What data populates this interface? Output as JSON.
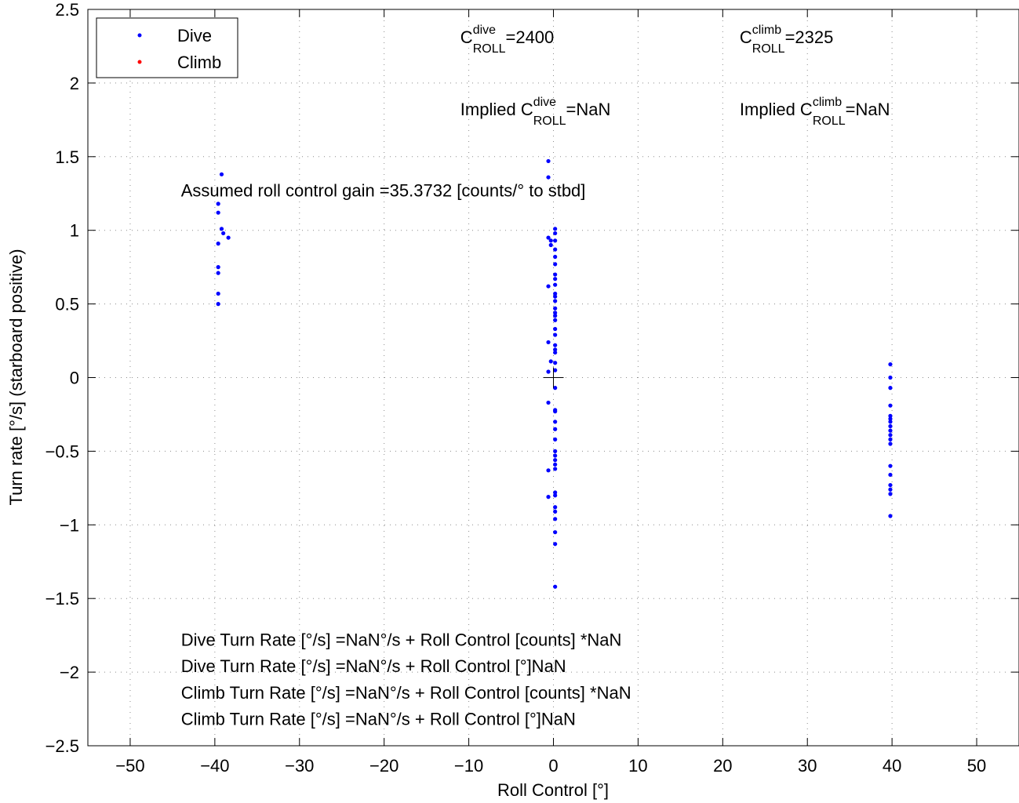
{
  "chart_data": {
    "type": "scatter",
    "xlabel": "Roll Control [°]",
    "ylabel": "Turn rate [°/s] (starboard positive)",
    "xlim": [
      -55,
      55
    ],
    "ylim": [
      -2.5,
      2.5
    ],
    "x_ticks": [
      -50,
      -40,
      -30,
      -20,
      -10,
      0,
      10,
      20,
      30,
      40,
      50
    ],
    "x_tick_labels": [
      "−50",
      "−40",
      "−30",
      "−20",
      "−10",
      "0",
      "10",
      "20",
      "30",
      "40",
      "50"
    ],
    "y_ticks": [
      2.5,
      2,
      1.5,
      1,
      0.5,
      0,
      -0.5,
      -1,
      -1.5,
      -2,
      -2.5
    ],
    "y_tick_labels": [
      "2.5",
      "2",
      "1.5",
      "1",
      "0.5",
      "0",
      "−0.5",
      "−1",
      "−1.5",
      "−2",
      "−2.5"
    ],
    "grid": true,
    "legend_position": "top-left",
    "legend": [
      {
        "label": "Dive",
        "color": "#0000ff"
      },
      {
        "label": "Climb",
        "color": "#ff0000"
      }
    ],
    "series": [
      {
        "name": "Dive",
        "color": "#0000ff",
        "points": [
          [
            -39.2,
            1.38
          ],
          [
            -39.6,
            1.18
          ],
          [
            -39.6,
            1.12
          ],
          [
            -39.2,
            1.01
          ],
          [
            -39.0,
            0.98
          ],
          [
            -38.4,
            0.95
          ],
          [
            -39.6,
            0.91
          ],
          [
            -39.6,
            0.75
          ],
          [
            -39.6,
            0.71
          ],
          [
            -39.6,
            0.57
          ],
          [
            -39.6,
            0.5
          ],
          [
            -0.6,
            1.47
          ],
          [
            -0.6,
            1.36
          ],
          [
            0.2,
            1.01
          ],
          [
            0.2,
            0.98
          ],
          [
            -0.6,
            0.95
          ],
          [
            -0.3,
            0.93
          ],
          [
            0.2,
            0.93
          ],
          [
            -0.3,
            0.9
          ],
          [
            0.2,
            0.87
          ],
          [
            0.2,
            0.82
          ],
          [
            0.2,
            0.77
          ],
          [
            0.2,
            0.7
          ],
          [
            0.2,
            0.67
          ],
          [
            0.2,
            0.63
          ],
          [
            -0.6,
            0.62
          ],
          [
            0.2,
            0.57
          ],
          [
            0.2,
            0.55
          ],
          [
            0.2,
            0.52
          ],
          [
            0.2,
            0.47
          ],
          [
            0.2,
            0.44
          ],
          [
            0.2,
            0.42
          ],
          [
            0.2,
            0.39
          ],
          [
            0.2,
            0.33
          ],
          [
            0.2,
            0.29
          ],
          [
            -0.6,
            0.24
          ],
          [
            0.2,
            0.22
          ],
          [
            0.2,
            0.19
          ],
          [
            0.2,
            0.17
          ],
          [
            -0.3,
            0.11
          ],
          [
            0.2,
            0.1
          ],
          [
            -0.6,
            0.04
          ],
          [
            0.2,
            0.05
          ],
          [
            0.2,
            -0.07
          ],
          [
            -0.6,
            -0.17
          ],
          [
            0.2,
            -0.22
          ],
          [
            0.2,
            -0.23
          ],
          [
            0.2,
            -0.3
          ],
          [
            0.2,
            -0.35
          ],
          [
            0.2,
            -0.42
          ],
          [
            0.2,
            -0.5
          ],
          [
            0.2,
            -0.53
          ],
          [
            0.2,
            -0.56
          ],
          [
            0.2,
            -0.59
          ],
          [
            0.2,
            -0.62
          ],
          [
            -0.6,
            -0.63
          ],
          [
            -0.6,
            -0.81
          ],
          [
            0.2,
            -0.78
          ],
          [
            0.2,
            -0.8
          ],
          [
            0.2,
            -0.88
          ],
          [
            0.2,
            -0.91
          ],
          [
            0.2,
            -0.96
          ],
          [
            0.2,
            -1.05
          ],
          [
            0.2,
            -1.13
          ],
          [
            0.2,
            -1.42
          ],
          [
            39.8,
            0.09
          ],
          [
            39.8,
            0.0
          ],
          [
            39.8,
            -0.07
          ],
          [
            39.8,
            -0.19
          ],
          [
            39.8,
            -0.26
          ],
          [
            39.8,
            -0.28
          ],
          [
            39.8,
            -0.3
          ],
          [
            39.8,
            -0.33
          ],
          [
            39.8,
            -0.36
          ],
          [
            39.8,
            -0.39
          ],
          [
            39.8,
            -0.42
          ],
          [
            39.8,
            -0.45
          ],
          [
            39.8,
            -0.6
          ],
          [
            39.8,
            -0.66
          ],
          [
            39.8,
            -0.73
          ],
          [
            39.8,
            -0.76
          ],
          [
            39.8,
            -0.79
          ],
          [
            39.8,
            -0.94
          ]
        ]
      },
      {
        "name": "Climb",
        "color": "#ff0000",
        "points": []
      }
    ],
    "crosshair": [
      0,
      0
    ],
    "annotations": {
      "c_roll_dive": {
        "sup": "dive",
        "sub": "ROLL",
        "value": "=2400",
        "x": -11,
        "y": 2.27
      },
      "c_roll_climb": {
        "sup": "climb",
        "sub": "ROLL",
        "value": "=2325",
        "x": 22,
        "y": 2.27
      },
      "implied_dive": {
        "prefix": "Implied C",
        "sup": "dive",
        "sub": "ROLL",
        "value": "=NaN",
        "x": -11,
        "y": 1.78
      },
      "implied_climb": {
        "prefix": "Implied C",
        "sup": "climb",
        "sub": "ROLL",
        "value": "=NaN",
        "x": 22,
        "y": 1.78
      },
      "gain": {
        "text": "Assumed roll control gain =35.3732 [counts/° to stbd]",
        "x": -44,
        "y": 1.23
      },
      "formulas": [
        {
          "text": "Dive Turn Rate [°/s] =NaN°/s + Roll Control [counts] *NaN",
          "x": -44,
          "y": -1.82
        },
        {
          "text": "Dive Turn Rate [°/s] =NaN°/s + Roll Control [°]NaN",
          "x": -44,
          "y": -2.0
        },
        {
          "text": "Climb Turn Rate [°/s] =NaN°/s + Roll Control [counts] *NaN",
          "x": -44,
          "y": -2.18
        },
        {
          "text": "Climb Turn Rate [°/s] =NaN°/s + Roll Control [°]NaN",
          "x": -44,
          "y": -2.36
        }
      ]
    }
  }
}
